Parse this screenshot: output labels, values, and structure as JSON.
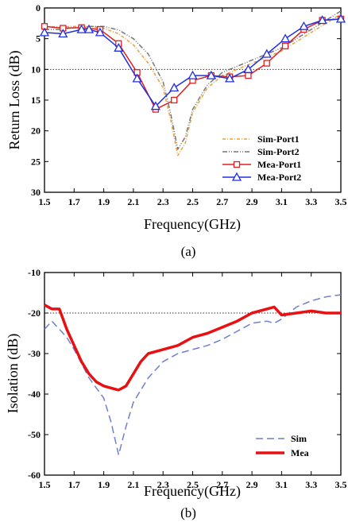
{
  "chart_data": [
    {
      "panel_label": "(a)",
      "type": "line",
      "title": "",
      "xlabel": "Frequency(GHz)",
      "ylabel": "Return Loss (dB)",
      "xlim": [
        1.5,
        3.5
      ],
      "ylim": [
        0,
        30
      ],
      "y_inverted": true,
      "x_ticks": [
        "1.5",
        "1.7",
        "1.9",
        "2.1",
        "2.3",
        "2.5",
        "2.7",
        "2.9",
        "3.1",
        "3.3",
        "3.5"
      ],
      "y_ticks": [
        "0",
        "5",
        "10",
        "15",
        "20",
        "25",
        "30"
      ],
      "reference_line": 10,
      "grid": false,
      "legend_position": "bottom-right",
      "series": [
        {
          "name": "Sim-Port1",
          "color": "#e8a23a",
          "dash": "4 2 1 2",
          "marker": "none",
          "x": [
            1.5,
            1.6,
            1.7,
            1.8,
            1.9,
            2.0,
            2.1,
            2.2,
            2.3,
            2.35,
            2.4,
            2.45,
            2.5,
            2.6,
            2.7,
            2.8,
            2.9,
            3.0,
            3.1,
            3.2,
            3.3,
            3.4,
            3.5
          ],
          "y": [
            3.0,
            3.1,
            3.0,
            3.0,
            3.3,
            4.2,
            6.0,
            9.0,
            13.0,
            18.0,
            24.0,
            22.0,
            17.0,
            13.0,
            11.0,
            10.0,
            9.0,
            8.0,
            7.0,
            5.5,
            4.0,
            2.5,
            1.0
          ]
        },
        {
          "name": "Sim-Port2",
          "color": "#777777",
          "dash": "6 2 1 2 1 2",
          "marker": "none",
          "x": [
            1.5,
            1.6,
            1.7,
            1.8,
            1.9,
            2.0,
            2.1,
            2.2,
            2.3,
            2.35,
            2.4,
            2.45,
            2.5,
            2.6,
            2.7,
            2.8,
            2.9,
            3.0,
            3.1,
            3.2,
            3.3,
            3.4,
            3.5
          ],
          "y": [
            3.5,
            3.5,
            3.2,
            3.0,
            3.0,
            3.6,
            5.0,
            7.5,
            12.0,
            17.0,
            23.0,
            21.0,
            16.5,
            12.5,
            10.5,
            9.5,
            8.5,
            7.5,
            6.5,
            5.0,
            3.5,
            2.0,
            0.5
          ]
        },
        {
          "name": "Mea-Port1",
          "color": "#e02020",
          "dash": "",
          "marker": "square",
          "x": [
            1.5,
            1.625,
            1.75,
            1.875,
            2.0,
            2.125,
            2.25,
            2.375,
            2.5,
            2.625,
            2.75,
            2.875,
            3.0,
            3.125,
            3.25,
            3.375,
            3.5
          ],
          "y": [
            3.0,
            3.3,
            3.2,
            3.5,
            5.8,
            10.5,
            16.5,
            15.0,
            11.8,
            11.0,
            11.2,
            11.0,
            9.0,
            6.2,
            3.5,
            2.0,
            1.8
          ]
        },
        {
          "name": "Mea-Port2",
          "color": "#2030e0",
          "dash": "",
          "marker": "triangle",
          "x": [
            1.5,
            1.625,
            1.75,
            1.8,
            1.875,
            2.0,
            2.125,
            2.25,
            2.375,
            2.5,
            2.625,
            2.75,
            2.875,
            3.0,
            3.125,
            3.25,
            3.375,
            3.5
          ],
          "y": [
            4.0,
            4.2,
            3.5,
            3.5,
            4.0,
            6.5,
            11.5,
            16.0,
            13.0,
            11.0,
            11.0,
            11.5,
            10.0,
            7.5,
            5.0,
            3.0,
            2.0,
            1.8
          ]
        }
      ]
    },
    {
      "panel_label": "(b)",
      "type": "line",
      "title": "",
      "xlabel": "Frequency(GHz)",
      "ylabel": "Isolation (dB)",
      "xlim": [
        1.5,
        3.5
      ],
      "ylim": [
        -60,
        -10
      ],
      "x_ticks": [
        "1.5",
        "1.7",
        "1.9",
        "2.1",
        "2.3",
        "2.5",
        "2.7",
        "2.9",
        "3.1",
        "3.3",
        "3.5"
      ],
      "y_ticks": [
        "-10",
        "-20",
        "-30",
        "-40",
        "-50",
        "-60"
      ],
      "reference_line": -20,
      "grid": false,
      "legend_position": "bottom-right",
      "series": [
        {
          "name": "Sim",
          "color": "#6f7fd0",
          "dash": "9 5",
          "marker": "none",
          "width": 1.5,
          "x": [
            1.5,
            1.55,
            1.6,
            1.65,
            1.7,
            1.8,
            1.9,
            1.95,
            2.0,
            2.05,
            2.1,
            2.2,
            2.3,
            2.4,
            2.5,
            2.6,
            2.7,
            2.8,
            2.9,
            3.0,
            3.05,
            3.1,
            3.2,
            3.3,
            3.4,
            3.5
          ],
          "y": [
            -24.0,
            -22.0,
            -24.0,
            -26.0,
            -29.0,
            -36.0,
            -41.0,
            -47.0,
            -55.0,
            -48.0,
            -42.0,
            -36.0,
            -32.0,
            -30.0,
            -29.0,
            -28.0,
            -26.5,
            -24.5,
            -22.5,
            -22.0,
            -22.5,
            -21.5,
            -18.5,
            -17.0,
            -16.0,
            -15.5
          ]
        },
        {
          "name": "Mea",
          "color": "#e81010",
          "dash": "",
          "marker": "none",
          "width": 3.5,
          "x": [
            1.5,
            1.55,
            1.6,
            1.65,
            1.7,
            1.75,
            1.8,
            1.85,
            1.9,
            1.95,
            2.0,
            2.05,
            2.1,
            2.15,
            2.2,
            2.3,
            2.4,
            2.5,
            2.6,
            2.7,
            2.8,
            2.9,
            3.0,
            3.05,
            3.1,
            3.2,
            3.3,
            3.4,
            3.5
          ],
          "y": [
            -18.0,
            -19.0,
            -19.0,
            -24.0,
            -28.0,
            -32.0,
            -35.0,
            -37.0,
            -38.0,
            -38.5,
            -39.0,
            -38.0,
            -35.0,
            -32.0,
            -30.0,
            -29.0,
            -28.0,
            -26.0,
            -25.0,
            -23.5,
            -22.0,
            -20.0,
            -19.0,
            -18.5,
            -20.5,
            -20.0,
            -19.5,
            -20.0,
            -20.0
          ]
        }
      ]
    }
  ]
}
